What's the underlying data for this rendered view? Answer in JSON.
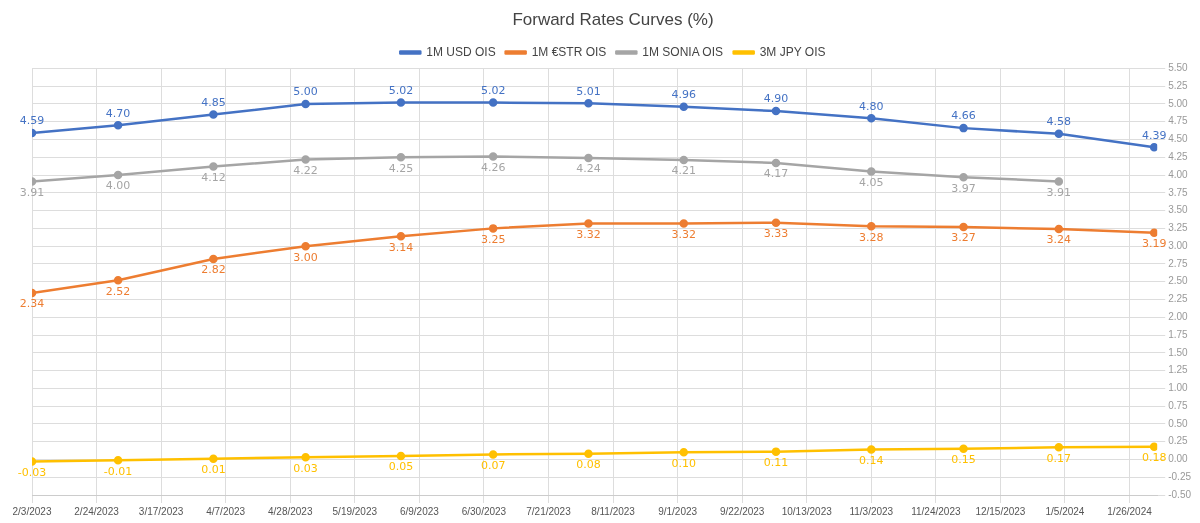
{
  "chart_data": {
    "type": "line",
    "title": "Forward Rates Curves (%)",
    "x": [
      "2023-02-03",
      "2023-03-03",
      "2023-04-03",
      "2023-05-03",
      "2023-06-03",
      "2023-07-03",
      "2023-08-03",
      "2023-09-03",
      "2023-10-03",
      "2023-11-03",
      "2023-12-03",
      "2024-01-03",
      "2024-02-03"
    ],
    "series": [
      {
        "name": "1M USD OIS",
        "color": "#4472c4",
        "values": [
          4.59,
          4.7,
          4.85,
          5.0,
          5.02,
          5.02,
          5.01,
          4.96,
          4.9,
          4.8,
          4.66,
          4.58,
          4.39
        ],
        "value_labels": [
          "4.59",
          "4.70",
          "4.85",
          "5.00",
          "5.02",
          "5.02",
          "5.01",
          "4.96",
          "4.90",
          "4.80",
          "4.66",
          "4.58",
          "4.39"
        ]
      },
      {
        "name": "1M €STR OIS",
        "color": "#ed7d31",
        "values": [
          2.34,
          2.52,
          2.82,
          3.0,
          3.14,
          3.25,
          3.32,
          3.32,
          3.33,
          3.28,
          3.27,
          3.24,
          3.19
        ],
        "value_labels": [
          "2.34",
          "2.52",
          "2.82",
          "3.00",
          "3.14",
          "3.25",
          "3.32",
          "3.32",
          "3.33",
          "3.28",
          "3.27",
          "3.24",
          "3.19"
        ]
      },
      {
        "name": "1M SONIA OIS",
        "color": "#a5a5a5",
        "values": [
          3.91,
          4.0,
          4.12,
          4.22,
          4.25,
          4.26,
          4.24,
          4.21,
          4.17,
          4.05,
          3.97,
          3.91,
          null
        ],
        "value_labels": [
          "3.91",
          "4.00",
          "4.12",
          "4.22",
          "4.25",
          "4.26",
          "4.24",
          "4.21",
          "4.17",
          "4.05",
          "3.97",
          "3.91",
          null
        ]
      },
      {
        "name": "3M JPY OIS",
        "color": "#ffc000",
        "values": [
          -0.03,
          -0.01,
          0.01,
          0.03,
          0.05,
          0.07,
          0.08,
          0.1,
          0.11,
          0.14,
          0.15,
          0.17,
          0.18
        ],
        "value_labels": [
          "-0.03",
          "-0.01",
          "0.01",
          "0.03",
          "0.05",
          "0.07",
          "0.08",
          "0.10",
          "0.11",
          "0.14",
          "0.15",
          "0.17",
          "0.18"
        ]
      }
    ],
    "xlim": [
      "2023-02-03",
      "2024-02-04"
    ],
    "xticks": [
      {
        "value": "2023-02-03",
        "label": "2/3/2023"
      },
      {
        "value": "2023-02-24",
        "label": "2/24/2023"
      },
      {
        "value": "2023-03-17",
        "label": "3/17/2023"
      },
      {
        "value": "2023-04-07",
        "label": "4/7/2023"
      },
      {
        "value": "2023-04-28",
        "label": "4/28/2023"
      },
      {
        "value": "2023-05-19",
        "label": "5/19/2023"
      },
      {
        "value": "2023-06-09",
        "label": "6/9/2023"
      },
      {
        "value": "2023-06-30",
        "label": "6/30/2023"
      },
      {
        "value": "2023-07-21",
        "label": "7/21/2023"
      },
      {
        "value": "2023-08-11",
        "label": "8/11/2023"
      },
      {
        "value": "2023-09-01",
        "label": "9/1/2023"
      },
      {
        "value": "2023-09-22",
        "label": "9/22/2023"
      },
      {
        "value": "2023-10-13",
        "label": "10/13/2023"
      },
      {
        "value": "2023-11-03",
        "label": "11/3/2023"
      },
      {
        "value": "2023-11-24",
        "label": "11/24/2023"
      },
      {
        "value": "2023-12-15",
        "label": "12/15/2023"
      },
      {
        "value": "2024-01-05",
        "label": "1/5/2024"
      },
      {
        "value": "2024-01-26",
        "label": "1/26/2024"
      }
    ],
    "ylim": [
      -0.5,
      5.5
    ],
    "yticks": [
      {
        "value": -0.5,
        "label": "-0.50"
      },
      {
        "value": -0.25,
        "label": "-0.25"
      },
      {
        "value": 0,
        "label": "0.00"
      },
      {
        "value": 0.25,
        "label": "0.25"
      },
      {
        "value": 0.5,
        "label": "0.50"
      },
      {
        "value": 0.75,
        "label": "0.75"
      },
      {
        "value": 1,
        "label": "1.00"
      },
      {
        "value": 1.25,
        "label": "1.25"
      },
      {
        "value": 1.5,
        "label": "1.50"
      },
      {
        "value": 1.75,
        "label": "1.75"
      },
      {
        "value": 2,
        "label": "2.00"
      },
      {
        "value": 2.25,
        "label": "2.25"
      },
      {
        "value": 2.5,
        "label": "2.50"
      },
      {
        "value": 2.75,
        "label": "2.75"
      },
      {
        "value": 3,
        "label": "3.00"
      },
      {
        "value": 3.25,
        "label": "3.25"
      },
      {
        "value": 3.5,
        "label": "3.50"
      },
      {
        "value": 3.75,
        "label": "3.75"
      },
      {
        "value": 4,
        "label": "4.00"
      },
      {
        "value": 4.25,
        "label": "4.25"
      },
      {
        "value": 4.5,
        "label": "4.50"
      },
      {
        "value": 4.75,
        "label": "4.75"
      },
      {
        "value": 5,
        "label": "5.00"
      },
      {
        "value": 5.25,
        "label": "5.25"
      },
      {
        "value": 5.5,
        "label": "5.50"
      }
    ],
    "grid": true,
    "legend": "top",
    "marker": "circle",
    "line_style": "solid"
  }
}
